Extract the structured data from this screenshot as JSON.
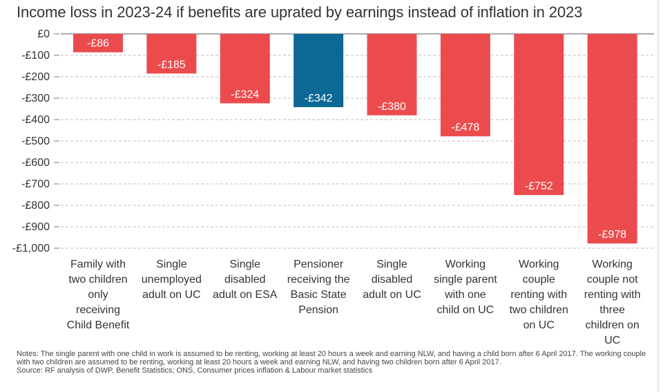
{
  "title": "Income loss in 2023-24 if benefits are uprated by earnings instead of inflation in 2023",
  "notes": [
    "Notes: The single parent with one child in work is assumed to be renting, working at least 20 hours a week and earning NLW, and having a child born after 6 April 2017. The working couple with two children are assumed to be renting, working at least 20 hours a week and earning NLW, and having two children born after 6 April 2017.",
    "Source: RF analysis of DWP, Benefit Statistics; ONS, Consumer prices inflation & Labour market statistics"
  ],
  "colors": {
    "bar": "#ec4b4e",
    "highlight": "#0c6894",
    "grid": "#bdbdbd",
    "axis": "#7a7a7a",
    "text": "#333333"
  },
  "chart_data": {
    "type": "bar",
    "title": "Income loss in 2023-24 if benefits are uprated by earnings instead of inflation in 2023",
    "xlabel": "",
    "ylabel": "",
    "ylim": [
      -1000,
      0
    ],
    "yticks": [
      0,
      -100,
      -200,
      -300,
      -400,
      -500,
      -600,
      -700,
      -800,
      -900,
      -1000
    ],
    "ytick_labels": [
      "£0",
      "-£100",
      "-£200",
      "-£300",
      "-£400",
      "-£500",
      "-£600",
      "-£700",
      "-£800",
      "-£900",
      "-£1,000"
    ],
    "grid": true,
    "categories": [
      [
        "Family with",
        "two children",
        "only",
        "receiving",
        "Child Benefit"
      ],
      [
        "Single",
        "unemployed",
        "adult on UC"
      ],
      [
        "Single",
        "disabled",
        "adult on ESA"
      ],
      [
        "Pensioner",
        "receiving the",
        "Basic State",
        "Pension"
      ],
      [
        "Single",
        "disabled",
        "adult on UC"
      ],
      [
        "Working",
        "single parent",
        "with one",
        "child on UC"
      ],
      [
        "Working",
        "couple",
        "renting with",
        "two children",
        "on UC"
      ],
      [
        "Working",
        "couple not",
        "renting with",
        "three",
        "children on",
        "UC"
      ]
    ],
    "values": [
      -86,
      -185,
      -324,
      -342,
      -380,
      -478,
      -752,
      -978
    ],
    "data_labels": [
      "-£86",
      "-£185",
      "-£324",
      "-£342",
      "-£380",
      "-£478",
      "-£752",
      "-£978"
    ],
    "highlight_index": 3
  }
}
